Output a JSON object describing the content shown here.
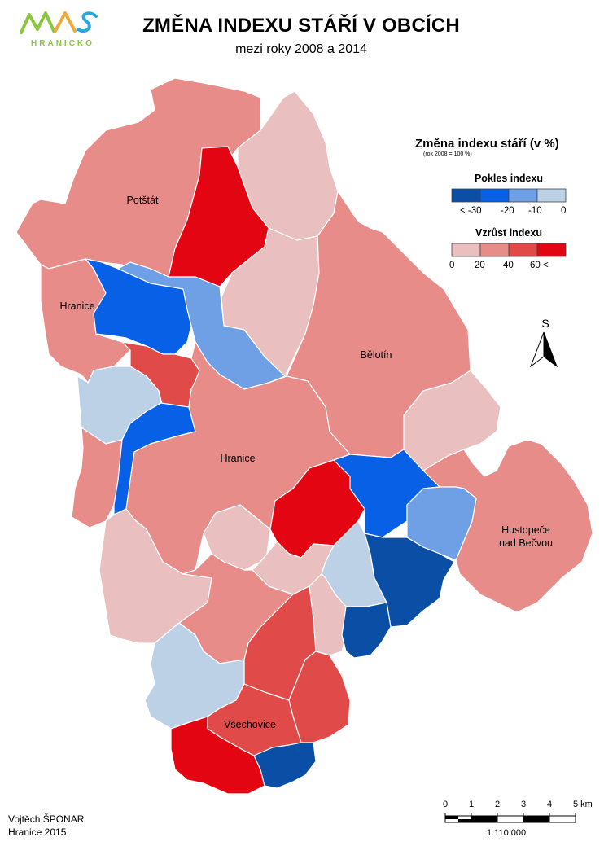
{
  "header": {
    "logo_text": "MAS",
    "logo_subtext": "HRANICKO",
    "title": "ZMĚNA INDEXU STÁŘÍ V OBCÍCH",
    "subtitle": "mezi roky 2008 a 2014"
  },
  "legend": {
    "title": "Změna indexu stáří (v %)",
    "note": "(rok 2008 = 100 %)",
    "decrease": {
      "heading": "Pokles indexu",
      "classes": [
        "#0a4ea6",
        "#0760e6",
        "#6fa0e6",
        "#bcd0e6"
      ],
      "ticks": [
        "< -30",
        "-20",
        "-10",
        "0"
      ]
    },
    "increase": {
      "heading": "Vzrůst indexu",
      "classes": [
        "#e9c0bf",
        "#e88c8a",
        "#e04a48",
        "#e30612"
      ],
      "ticks": [
        "0",
        "20",
        "40",
        "60 <"
      ]
    }
  },
  "north_arrow": {
    "label": "S"
  },
  "map": {
    "places": [
      "Potštát",
      "Hranice",
      "Bělotín",
      "Hranice",
      "Hustopeče",
      "nad Bečvou",
      "Všechovice"
    ],
    "colors": {
      "light_pink": "#e9c0bf",
      "pink": "#e88c8a",
      "red": "#e04a48",
      "dark_red": "#e30612",
      "light_blue": "#bcd0e6",
      "mid_blue": "#6fa0e6",
      "blue": "#0760e6",
      "dark_blue": "#0a4ea6",
      "border": "#ffffff"
    }
  },
  "scale": {
    "labels": [
      "0",
      "1",
      "2",
      "3",
      "4",
      "5 km"
    ],
    "ratio": "1:110 000"
  },
  "credits": {
    "author": "Vojtěch ŠPONAR",
    "place_year": "Hranice 2015"
  }
}
